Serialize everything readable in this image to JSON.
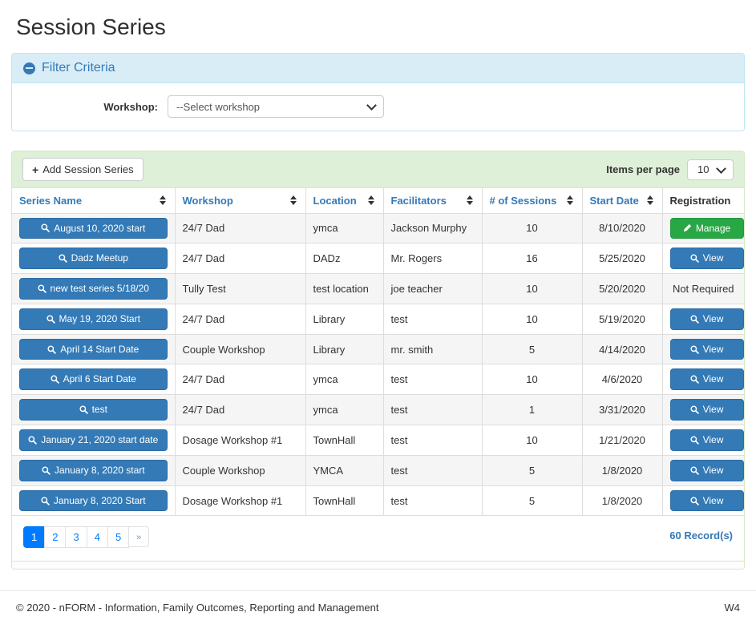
{
  "page": {
    "title": "Session Series"
  },
  "filter": {
    "title": "Filter Criteria",
    "workshop_label": "Workshop:",
    "workshop_selected": "--Select workshop"
  },
  "toolbar": {
    "add_button_label": "Add Session Series",
    "items_per_page_label": "Items per page",
    "items_per_page_value": "10"
  },
  "table": {
    "columns": [
      {
        "label": "Series Name",
        "sortable": true
      },
      {
        "label": "Workshop",
        "sortable": true
      },
      {
        "label": "Location",
        "sortable": true
      },
      {
        "label": "Facilitators",
        "sortable": true
      },
      {
        "label": "# of Sessions",
        "sortable": true
      },
      {
        "label": "Start Date",
        "sortable": true
      },
      {
        "label": "Registration",
        "sortable": false
      }
    ],
    "rows": [
      {
        "series_name": "August 10, 2020 start",
        "workshop": "24/7 Dad",
        "location": "ymca",
        "facilitators": "Jackson Murphy",
        "sessions": "10",
        "start_date": "8/10/2020",
        "registration": {
          "type": "manage",
          "label": "Manage"
        }
      },
      {
        "series_name": "Dadz Meetup",
        "workshop": "24/7 Dad",
        "location": "DADz",
        "facilitators": "Mr. Rogers",
        "sessions": "16",
        "start_date": "5/25/2020",
        "registration": {
          "type": "view",
          "label": "View"
        }
      },
      {
        "series_name": "new test series 5/18/20",
        "workshop": "Tully Test",
        "location": "test location",
        "facilitators": "joe teacher",
        "sessions": "10",
        "start_date": "5/20/2020",
        "registration": {
          "type": "text",
          "label": "Not Required"
        }
      },
      {
        "series_name": "May 19, 2020 Start",
        "workshop": "24/7 Dad",
        "location": "Library",
        "facilitators": "test",
        "sessions": "10",
        "start_date": "5/19/2020",
        "registration": {
          "type": "view",
          "label": "View"
        }
      },
      {
        "series_name": "April 14 Start Date",
        "workshop": "Couple Workshop",
        "location": "Library",
        "facilitators": "mr. smith",
        "sessions": "5",
        "start_date": "4/14/2020",
        "registration": {
          "type": "view",
          "label": "View"
        }
      },
      {
        "series_name": "April 6 Start Date",
        "workshop": "24/7 Dad",
        "location": "ymca",
        "facilitators": "test",
        "sessions": "10",
        "start_date": "4/6/2020",
        "registration": {
          "type": "view",
          "label": "View"
        }
      },
      {
        "series_name": "test",
        "workshop": "24/7 Dad",
        "location": "ymca",
        "facilitators": "test",
        "sessions": "1",
        "start_date": "3/31/2020",
        "registration": {
          "type": "view",
          "label": "View"
        }
      },
      {
        "series_name": "January 21, 2020 start date",
        "workshop": "Dosage Workshop #1",
        "location": "TownHall",
        "facilitators": "test",
        "sessions": "10",
        "start_date": "1/21/2020",
        "registration": {
          "type": "view",
          "label": "View"
        }
      },
      {
        "series_name": "January 8, 2020 start",
        "workshop": "Couple Workshop",
        "location": "YMCA",
        "facilitators": "test",
        "sessions": "5",
        "start_date": "1/8/2020",
        "registration": {
          "type": "view",
          "label": "View"
        }
      },
      {
        "series_name": "January 8, 2020 Start",
        "workshop": "Dosage Workshop #1",
        "location": "TownHall",
        "facilitators": "test",
        "sessions": "5",
        "start_date": "1/8/2020",
        "registration": {
          "type": "view",
          "label": "View"
        }
      }
    ]
  },
  "pagination": {
    "pages": [
      "1",
      "2",
      "3",
      "4",
      "5"
    ],
    "active_page": "1",
    "next_label": "»",
    "records_label": "60 Record(s)"
  },
  "footer": {
    "copyright": "© 2020 - nFORM - Information, Family Outcomes, Reporting and Management",
    "version": "W4"
  },
  "colors": {
    "primary_blue": "#337ab7",
    "pagination_blue": "#007bff",
    "success_green": "#28a745",
    "panel_green_bg": "#dff0d8",
    "panel_green_border": "#d6e9c6",
    "panel_blue_bg": "#d9edf7",
    "panel_blue_border": "#bce8f1",
    "stripe_gray": "#f5f5f5"
  }
}
